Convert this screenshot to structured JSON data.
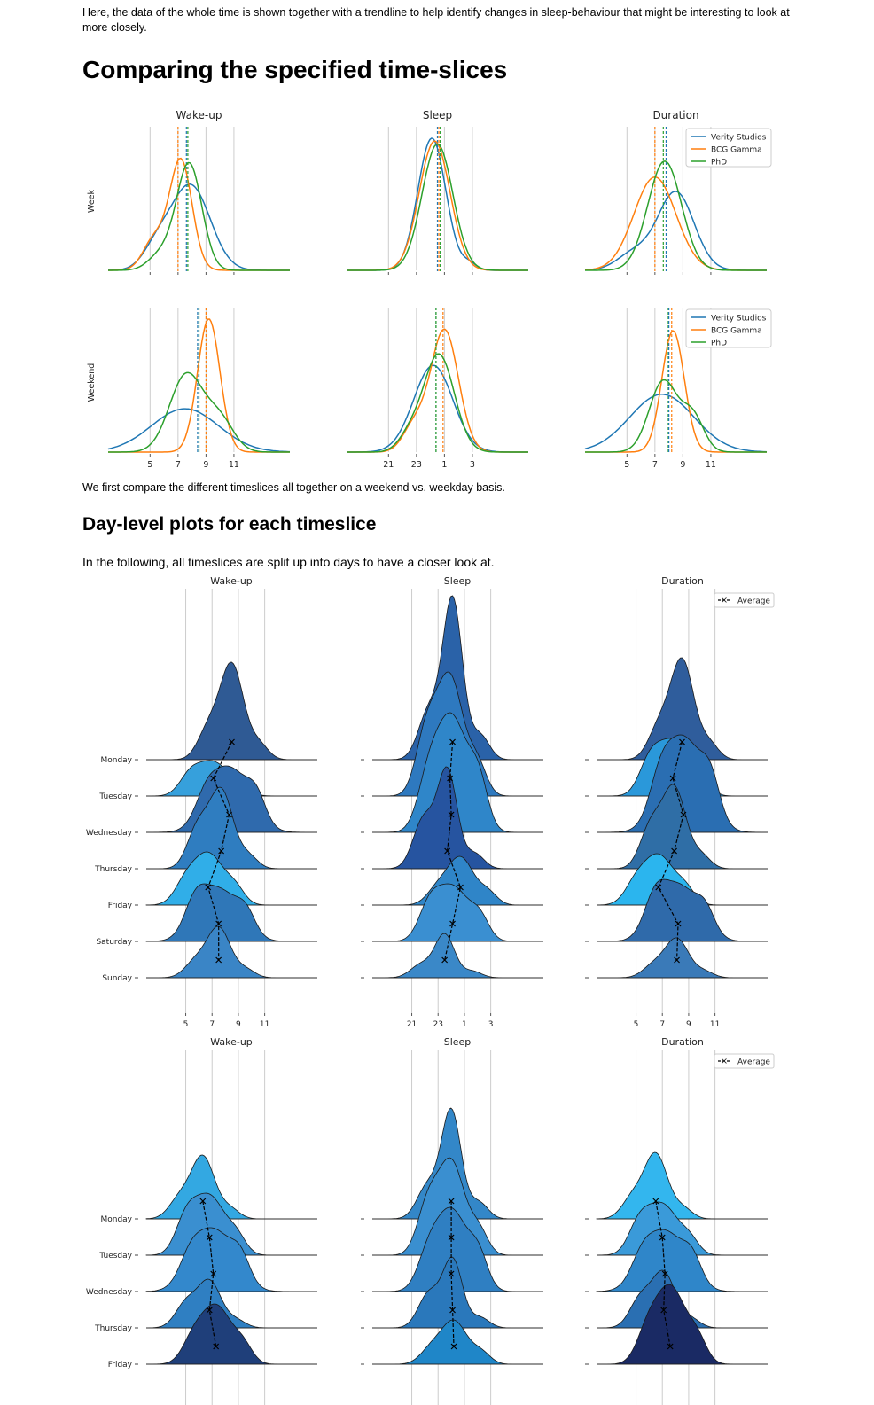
{
  "intro_text": "Here, the data of the whole time is shown together with a trendline to help identify changes in sleep-behaviour that might be interesting to look at more closely.",
  "section1_title": "Comparing the specified time-slices",
  "section1_caption": "We first compare the different timeslices all together on a weekend vs. weekday basis.",
  "section2_title": "Day-level plots for each timeslice",
  "section2_text": "In the following, all timeslices are split up into days to have a closer look at.",
  "colors": {
    "verity": "#1f77b4",
    "bcg": "#ff7f0e",
    "phd": "#2ca02c",
    "grid": "#cccccc"
  },
  "chart_data": [
    {
      "type": "line",
      "kind": "kde-grid",
      "columns": [
        "Wake-up",
        "Sleep",
        "Duration"
      ],
      "rows": [
        "Week",
        "Weekend"
      ],
      "legend": [
        "Verity Studios",
        "BCG Gamma",
        "PhD"
      ],
      "x_ticks": [
        [
          "5",
          "7",
          "9",
          "11"
        ],
        [
          "21",
          "23",
          "1",
          "3"
        ],
        [
          "5",
          "7",
          "9",
          "11"
        ]
      ],
      "means": {
        "Week": {
          "Wake-up": {
            "Verity Studios": 7.6,
            "BCG Gamma": 7.0,
            "PhD": 7.7
          },
          "Sleep": {
            "Verity Studios": 24.5,
            "BCG Gamma": 24.6,
            "PhD": 24.7
          },
          "Duration": {
            "Verity Studios": 7.8,
            "BCG Gamma": 7.0,
            "PhD": 7.6
          }
        },
        "Weekend": {
          "Wake-up": {
            "Verity Studios": 8.4,
            "BCG Gamma": 9.0,
            "PhD": 8.5
          },
          "Sleep": {
            "Verity Studios": 24.4,
            "BCG Gamma": 24.9,
            "PhD": 24.4
          },
          "Duration": {
            "Verity Studios": 8.0,
            "BCG Gamma": 8.2,
            "PhD": 7.9
          }
        }
      }
    },
    {
      "type": "area",
      "kind": "ridgeline",
      "columns": [
        "Wake-up",
        "Sleep",
        "Duration"
      ],
      "days": [
        "Monday",
        "Tuesday",
        "Wednesday",
        "Thursday",
        "Friday",
        "Saturday",
        "Sunday"
      ],
      "legend": [
        "Average"
      ],
      "x_ticks": [
        [
          "5",
          "7",
          "9",
          "11"
        ],
        [
          "21",
          "23",
          "1",
          "3"
        ],
        [
          "5",
          "7",
          "9",
          "11"
        ]
      ],
      "averages": {
        "Wake-up": [
          8.5,
          7.1,
          8.3,
          7.7,
          6.7,
          7.5,
          7.5
        ],
        "Sleep": [
          24.1,
          23.9,
          24.0,
          23.7,
          24.7,
          24.1,
          23.5
        ],
        "Duration": [
          8.5,
          7.8,
          8.6,
          7.9,
          6.7,
          8.2,
          8.1
        ]
      }
    },
    {
      "type": "area",
      "kind": "ridgeline",
      "columns": [
        "Wake-up",
        "Sleep",
        "Duration"
      ],
      "days": [
        "Monday",
        "Tuesday",
        "Wednesday",
        "Thursday",
        "Friday"
      ],
      "legend": [
        "Average"
      ],
      "averages": {
        "Wake-up": [
          6.3,
          6.8,
          7.1,
          6.8,
          7.3
        ],
        "Sleep": [
          24.0,
          24.0,
          24.0,
          24.1,
          24.2
        ],
        "Duration": [
          6.5,
          7.0,
          7.2,
          7.1,
          7.6
        ]
      }
    }
  ]
}
